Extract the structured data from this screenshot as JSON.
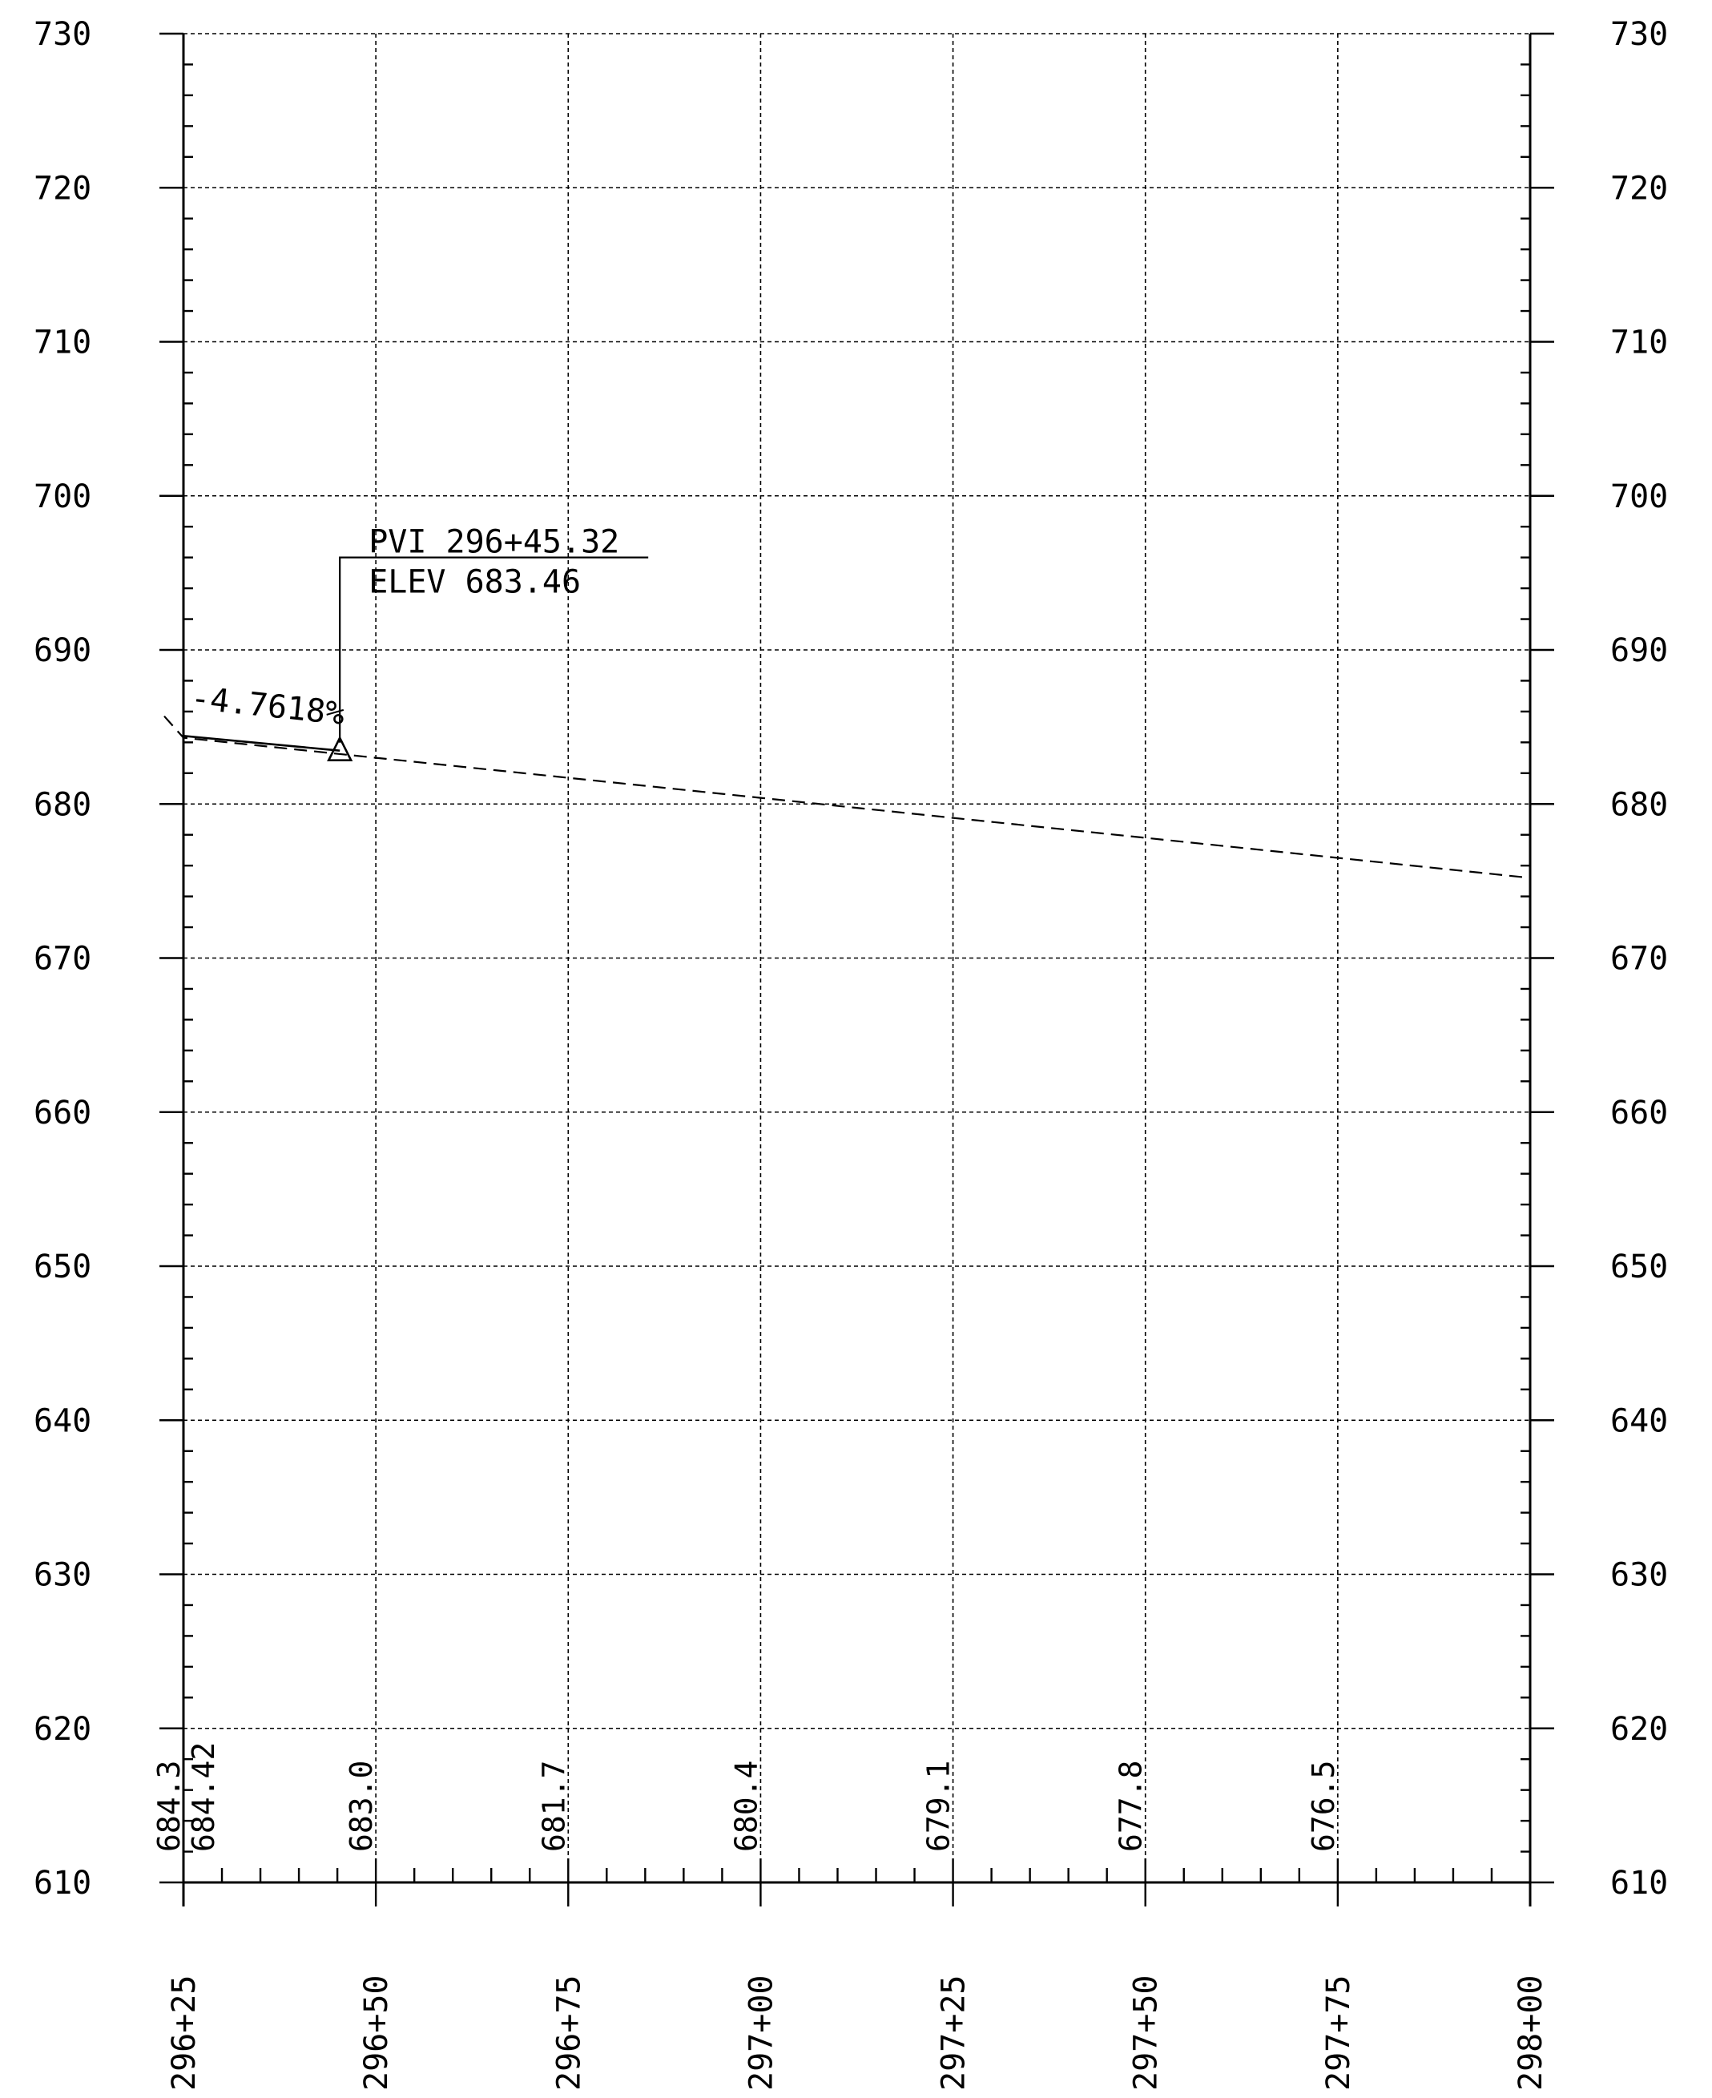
{
  "chart_data": {
    "type": "line",
    "y_ticks": [
      "730",
      "720",
      "710",
      "700",
      "690",
      "680",
      "670",
      "660",
      "650",
      "640",
      "630",
      "620",
      "610"
    ],
    "y_tick_values": [
      730,
      720,
      710,
      700,
      690,
      680,
      670,
      660,
      650,
      640,
      630,
      620,
      610
    ],
    "ylim": [
      610,
      730
    ],
    "x_ticks": [
      "296+25",
      "296+50",
      "296+75",
      "297+00",
      "297+25",
      "297+50",
      "297+75",
      "298+00"
    ],
    "x_tick_values": [
      29625,
      29650,
      29675,
      29700,
      29725,
      29750,
      29775,
      29800
    ],
    "xlim": [
      29625,
      29800
    ],
    "grid": true,
    "series": [
      {
        "style": "dashed",
        "x": [
          29622.5,
          29625,
          29650,
          29675,
          29700,
          29725,
          29750,
          29775,
          29800
        ],
        "y": [
          685.7,
          684.3,
          683.0,
          681.7,
          680.4,
          679.1,
          677.8,
          676.5,
          675.2
        ]
      },
      {
        "style": "solid",
        "x": [
          29625,
          29645.32
        ],
        "y": [
          684.42,
          683.46
        ]
      }
    ],
    "ground_labels": [
      {
        "station": 29625,
        "text": "684.3"
      },
      {
        "station": 29625,
        "text": "684.42"
      },
      {
        "station": 29650,
        "text": "683.0"
      },
      {
        "station": 29675,
        "text": "681.7"
      },
      {
        "station": 29700,
        "text": "680.4"
      },
      {
        "station": 29725,
        "text": "679.1"
      },
      {
        "station": 29750,
        "text": "677.8"
      },
      {
        "station": 29775,
        "text": "676.5"
      }
    ],
    "annotations": {
      "pvi_station": 29645.32,
      "pvi_elev": 683.46,
      "pvi_label_line1": "PVI 296+45.32",
      "pvi_label_line2": "ELEV 683.46",
      "grade_label": "-4.7618%"
    }
  }
}
